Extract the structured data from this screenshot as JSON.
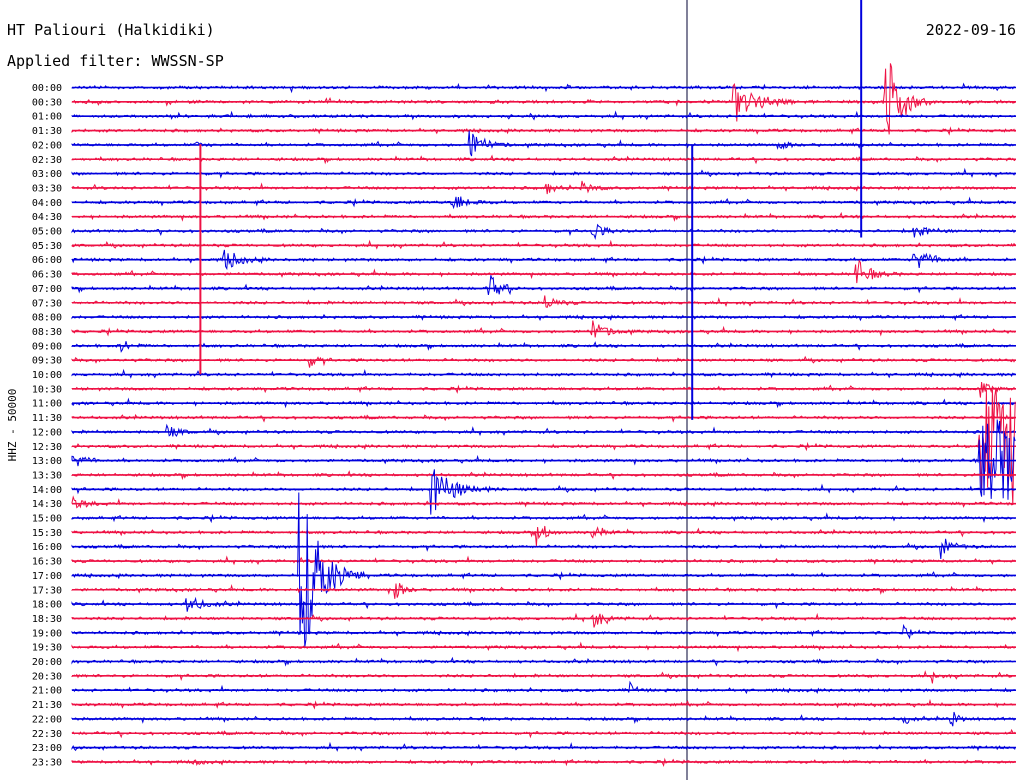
{
  "header": {
    "station": "HT Paliouri (Halkidiki)",
    "date": "2022-09-16",
    "filter": "Applied filter: WWSSN-SP"
  },
  "chart_data": {
    "type": "line",
    "subtype": "helicorder",
    "ylabel": "HHZ - 50000",
    "row_labels": [
      "00:00",
      "00:30",
      "01:00",
      "01:30",
      "02:00",
      "02:30",
      "03:00",
      "03:30",
      "04:00",
      "04:30",
      "05:00",
      "05:30",
      "06:00",
      "06:30",
      "07:00",
      "07:30",
      "08:00",
      "08:30",
      "09:00",
      "09:30",
      "10:00",
      "10:30",
      "11:00",
      "11:30",
      "12:00",
      "12:30",
      "13:00",
      "13:30",
      "14:00",
      "14:30",
      "15:00",
      "15:30",
      "16:00",
      "16:30",
      "17:00",
      "17:30",
      "18:00",
      "18:30",
      "19:00",
      "19:30",
      "20:00",
      "20:30",
      "21:00",
      "21:30",
      "22:00",
      "22:30",
      "23:00",
      "23:30"
    ],
    "series_colors": [
      "#0000dd",
      "#ee1144"
    ],
    "events": [
      {
        "row": 1,
        "t": 0.7,
        "amp": 22,
        "dur": 0.08,
        "kind": "quake"
      },
      {
        "row": 1,
        "t": 0.86,
        "amp": 80,
        "dur": 0.05,
        "kind": "quake"
      },
      {
        "row": 4,
        "t": 0.42,
        "amp": 18,
        "dur": 0.05,
        "kind": "quake"
      },
      {
        "row": 4,
        "t": 0.13,
        "amp": 3,
        "dur": 0.03,
        "kind": "burst"
      },
      {
        "row": 4,
        "t": 0.75,
        "amp": 6,
        "dur": 0.03,
        "kind": "burst"
      },
      {
        "row": 7,
        "t": 0.5,
        "amp": 7,
        "dur": 0.04,
        "kind": "burst"
      },
      {
        "row": 7,
        "t": 0.54,
        "amp": 10,
        "dur": 0.03,
        "kind": "burst"
      },
      {
        "row": 8,
        "t": 0.4,
        "amp": 12,
        "dur": 0.05,
        "kind": "quake"
      },
      {
        "row": 10,
        "t": 0.55,
        "amp": 10,
        "dur": 0.04,
        "kind": "quake"
      },
      {
        "row": 10,
        "t": 0.89,
        "amp": 8,
        "dur": 0.05,
        "kind": "burst"
      },
      {
        "row": 12,
        "t": 0.16,
        "amp": 14,
        "dur": 0.05,
        "kind": "quake"
      },
      {
        "row": 12,
        "t": 0.89,
        "amp": 14,
        "dur": 0.06,
        "kind": "quake"
      },
      {
        "row": 13,
        "t": 0.83,
        "amp": 16,
        "dur": 0.05,
        "kind": "quake"
      },
      {
        "row": 14,
        "t": 0.44,
        "amp": 18,
        "dur": 0.04,
        "kind": "quake"
      },
      {
        "row": 15,
        "t": 0.5,
        "amp": 9,
        "dur": 0.04,
        "kind": "burst"
      },
      {
        "row": 17,
        "t": 0.55,
        "amp": 12,
        "dur": 0.05,
        "kind": "quake"
      },
      {
        "row": 18,
        "t": 0.05,
        "amp": 9,
        "dur": 0.03,
        "kind": "burst"
      },
      {
        "row": 19,
        "t": 0.25,
        "amp": 8,
        "dur": 0.03,
        "kind": "burst"
      },
      {
        "row": 21,
        "t": 0.96,
        "amp": 12,
        "dur": 0.03,
        "kind": "burst"
      },
      {
        "row": 24,
        "t": 0.1,
        "amp": 8,
        "dur": 0.04,
        "kind": "burst"
      },
      {
        "row": 25,
        "t": 0.96,
        "amp": 60,
        "dur": 0.05,
        "kind": "noise"
      },
      {
        "row": 26,
        "t": 0.0,
        "amp": 10,
        "dur": 0.04,
        "kind": "quake"
      },
      {
        "row": 26,
        "t": 0.96,
        "amp": 40,
        "dur": 0.05,
        "kind": "noise"
      },
      {
        "row": 28,
        "t": 0.38,
        "amp": 26,
        "dur": 0.08,
        "kind": "quake"
      },
      {
        "row": 29,
        "t": 0.0,
        "amp": 6,
        "dur": 0.05,
        "kind": "burst"
      },
      {
        "row": 31,
        "t": 0.49,
        "amp": 22,
        "dur": 0.03,
        "kind": "quake"
      },
      {
        "row": 31,
        "t": 0.55,
        "amp": 10,
        "dur": 0.03,
        "kind": "burst"
      },
      {
        "row": 32,
        "t": 0.92,
        "amp": 12,
        "dur": 0.04,
        "kind": "quake"
      },
      {
        "row": 34,
        "t": 0.24,
        "amp": 110,
        "dur": 0.07,
        "kind": "quake"
      },
      {
        "row": 35,
        "t": 0.34,
        "amp": 16,
        "dur": 0.03,
        "kind": "quake"
      },
      {
        "row": 36,
        "t": 0.12,
        "amp": 9,
        "dur": 0.06,
        "kind": "burst"
      },
      {
        "row": 37,
        "t": 0.55,
        "amp": 12,
        "dur": 0.04,
        "kind": "quake"
      },
      {
        "row": 38,
        "t": 0.88,
        "amp": 7,
        "dur": 0.02,
        "kind": "burst"
      },
      {
        "row": 41,
        "t": 0.91,
        "amp": 9,
        "dur": 0.02,
        "kind": "quake"
      },
      {
        "row": 42,
        "t": 0.59,
        "amp": 9,
        "dur": 0.02,
        "kind": "quake"
      },
      {
        "row": 44,
        "t": 0.88,
        "amp": 10,
        "dur": 0.02,
        "kind": "quake"
      },
      {
        "row": 44,
        "t": 0.93,
        "amp": 16,
        "dur": 0.02,
        "kind": "quake"
      },
      {
        "row": 47,
        "t": 0.13,
        "amp": 5,
        "dur": 0.02,
        "kind": "burst"
      }
    ],
    "spikes": [
      {
        "row": 5,
        "t": 0.136,
        "amp_up": 15,
        "amp_down": 215
      },
      {
        "row": 4,
        "t": 0.657,
        "amp_up": 0,
        "amp_down": 275
      },
      {
        "row": 0,
        "t": 0.836,
        "amp_up": 90,
        "amp_down": 150
      }
    ]
  }
}
